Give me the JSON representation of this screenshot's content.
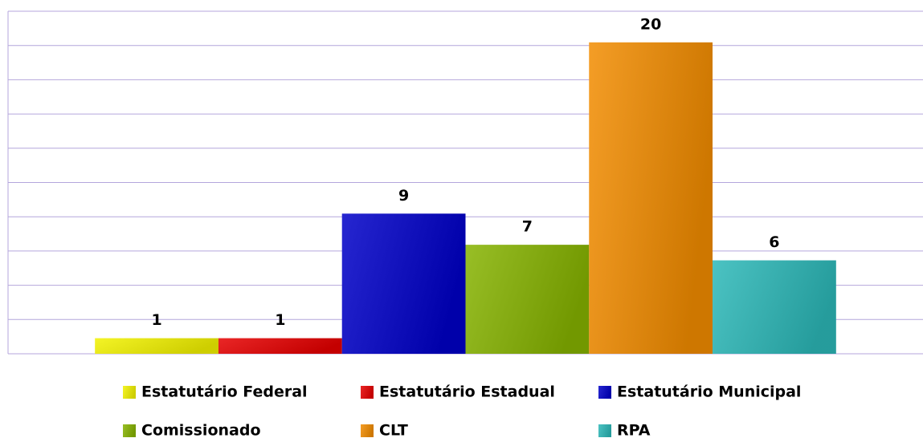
{
  "chart_data": {
    "type": "bar",
    "categories": [
      null
    ],
    "series": [
      {
        "name": "Estatutário Federal",
        "color": "#f2f200",
        "values": [
          1
        ]
      },
      {
        "name": "Estatutário Estadual",
        "color": "#e60000",
        "values": [
          1
        ]
      },
      {
        "name": "Estatutário Municipal",
        "color": "#0000c8",
        "values": [
          9
        ]
      },
      {
        "name": "Comissionado",
        "color": "#86b300",
        "values": [
          7
        ]
      },
      {
        "name": "CLT",
        "color": "#f28c00",
        "values": [
          20
        ]
      },
      {
        "name": "RPA",
        "color": "#2cb8b8",
        "values": [
          6
        ]
      }
    ],
    "ylim": [
      0,
      22
    ],
    "yticks": [
      0,
      2.2,
      4.4,
      6.6,
      8.8,
      11,
      13.2,
      15.4,
      17.6,
      19.8,
      22
    ],
    "grid": true
  }
}
